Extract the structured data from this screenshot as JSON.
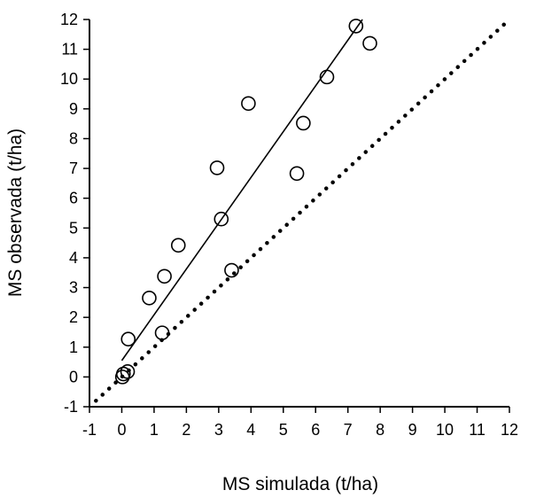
{
  "chart_data": {
    "type": "scatter",
    "xlabel": "MS simulada (t/ha)",
    "ylabel": "MS observada (t/ha)",
    "xlim": [
      -1,
      12
    ],
    "ylim": [
      -1,
      12
    ],
    "xticks": [
      "-1",
      "0",
      "1",
      "2",
      "3",
      "4",
      "5",
      "6",
      "7",
      "8",
      "9",
      "10",
      "11",
      "12"
    ],
    "yticks": [
      "-1",
      "0",
      "1",
      "2",
      "3",
      "4",
      "5",
      "6",
      "7",
      "8",
      "9",
      "10",
      "11",
      "12"
    ],
    "grid": false,
    "points": [
      {
        "x": 0.02,
        "y": 0.0
      },
      {
        "x": 0.05,
        "y": 0.1
      },
      {
        "x": 0.18,
        "y": 0.18
      },
      {
        "x": 0.2,
        "y": 1.27
      },
      {
        "x": 0.85,
        "y": 2.65
      },
      {
        "x": 1.25,
        "y": 1.48
      },
      {
        "x": 1.32,
        "y": 3.38
      },
      {
        "x": 1.75,
        "y": 4.42
      },
      {
        "x": 2.95,
        "y": 7.02
      },
      {
        "x": 3.08,
        "y": 5.3
      },
      {
        "x": 3.4,
        "y": 3.58
      },
      {
        "x": 3.92,
        "y": 9.18
      },
      {
        "x": 5.42,
        "y": 6.83
      },
      {
        "x": 5.62,
        "y": 8.52
      },
      {
        "x": 6.35,
        "y": 10.07
      },
      {
        "x": 7.25,
        "y": 11.78
      },
      {
        "x": 7.68,
        "y": 11.2
      }
    ],
    "regression_line": {
      "x": [
        0,
        7.45
      ],
      "y": [
        0.55,
        12.0
      ],
      "style": "solid"
    },
    "identity_line": {
      "x": [
        -0.8,
        12
      ],
      "y": [
        -0.8,
        12
      ],
      "style": "dotted"
    },
    "colors": {
      "marks": "#000000",
      "background": "#ffffff"
    }
  }
}
